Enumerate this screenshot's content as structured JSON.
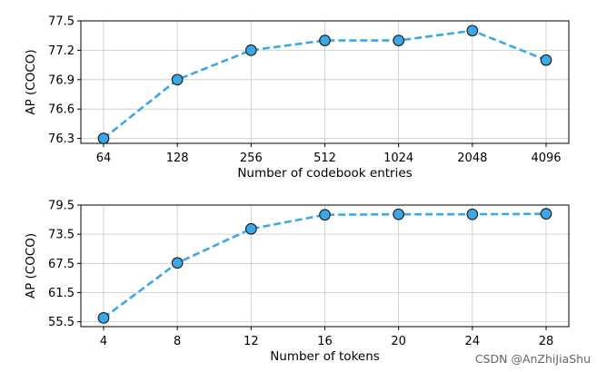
{
  "colors": {
    "line": "#3aa8e8",
    "marker_fill": "#3aa8e8",
    "marker_edge": "#1a1a1a",
    "grid": "#c8c8c8"
  },
  "watermark": "CSDN @AnZhiJiaShu",
  "chart_data": [
    {
      "type": "line",
      "categories": [
        "64",
        "128",
        "256",
        "512",
        "1024",
        "2048",
        "4096"
      ],
      "values": [
        76.3,
        76.9,
        77.2,
        77.3,
        77.3,
        77.4,
        77.1
      ],
      "xlabel": "Number of codebook entries",
      "ylabel": "AP (COCO)",
      "yticks": [
        "76.3",
        "76.6",
        "76.9",
        "77.2",
        "77.5"
      ],
      "ylim": [
        76.25,
        77.5
      ],
      "grid": true,
      "line_style": "dashed",
      "marker": "circle"
    },
    {
      "type": "line",
      "categories": [
        "4",
        "8",
        "12",
        "16",
        "20",
        "24",
        "28"
      ],
      "values": [
        56.3,
        67.6,
        74.6,
        77.5,
        77.6,
        77.6,
        77.7
      ],
      "xlabel": "Number of tokens",
      "ylabel": "AP (COCO)",
      "yticks": [
        "55.5",
        "61.5",
        "67.5",
        "73.5",
        "79.5"
      ],
      "ylim": [
        54.5,
        79.5
      ],
      "grid": true,
      "line_style": "dashed",
      "marker": "circle"
    }
  ]
}
